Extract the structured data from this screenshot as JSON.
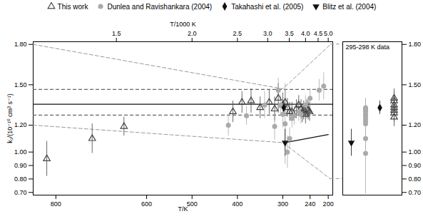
{
  "chart_data": [
    {
      "type": "scatter",
      "xlabel": "T/K",
      "x2label": "T/1000 K",
      "ylabel": "k₁/(10⁻¹⁰ cm³ s⁻¹)",
      "xlim": [
        850,
        190
      ],
      "xticks": [
        800,
        600,
        500,
        400,
        300,
        240,
        200
      ],
      "x2ticks": [
        {
          "value": 666.6666666666666,
          "label": "1.5"
        },
        {
          "value": 500,
          "label": "2.0"
        },
        {
          "value": 400,
          "label": "2.5"
        },
        {
          "value": 333.3333333333333,
          "label": "3.0"
        },
        {
          "value": 285.7142857142857,
          "label": "3.5"
        },
        {
          "value": 250,
          "label": "4.0"
        },
        {
          "value": 222.22222222222223,
          "label": "4.5"
        },
        {
          "value": 200,
          "label": "5.0"
        }
      ],
      "ylim": [
        0.68,
        1.82
      ],
      "yticks": [
        {
          "value": 0.7,
          "label": "0.70"
        },
        {
          "value": 0.8,
          "label": "0.80"
        },
        {
          "value": 0.9,
          "label": "0.90"
        },
        {
          "value": 1.0,
          "label": "1.00"
        },
        {
          "value": 1.2,
          "label": "1.20"
        },
        {
          "value": 1.5,
          "label": "1.50"
        },
        {
          "value": 1.8,
          "label": "1.80"
        }
      ],
      "legend": "top",
      "series": [
        {
          "name": "This work",
          "color": "#444444",
          "marker": "triangle-open",
          "x": [
            820,
            720,
            650,
            410,
            390,
            370,
            350,
            330,
            318,
            310,
            300,
            295,
            290,
            285,
            280,
            270,
            265,
            260,
            257,
            254,
            250,
            247,
            244,
            241
          ],
          "values": [
            0.95,
            1.1,
            1.19,
            1.3,
            1.37,
            1.38,
            1.33,
            1.37,
            1.32,
            1.4,
            1.35,
            1.37,
            1.33,
            1.3,
            1.3,
            1.32,
            1.35,
            1.32,
            1.29,
            1.31,
            1.28,
            1.32,
            1.31,
            1.3
          ],
          "yerr": [
            0.13,
            0.11,
            0.07,
            0.08,
            0.08,
            0.09,
            0.08,
            0.09,
            0.09,
            0.11,
            0.09,
            0.09,
            0.07,
            0.07,
            0.07,
            0.07,
            0.07,
            0.07,
            0.07,
            0.07,
            0.07,
            0.07,
            0.07,
            0.07
          ]
        },
        {
          "name": "Dunlea and Ravishankara (2004)",
          "color": "#aaaaaa",
          "marker": "circle",
          "x": [
            420,
            380,
            340,
            318,
            310,
            305,
            300,
            295,
            290,
            285,
            280,
            275,
            265,
            260,
            250,
            240,
            220,
            210
          ],
          "values": [
            1.2,
            1.27,
            1.35,
            1.19,
            1.46,
            1.35,
            1.28,
            1.21,
            1.0,
            1.1,
            1.25,
            1.27,
            1.3,
            1.28,
            1.35,
            1.4,
            1.46,
            1.49
          ],
          "yerr": [
            0.08,
            0.07,
            0.1,
            0.1,
            0.09,
            0.07,
            0.1,
            0.3,
            0.12,
            0.08,
            0.07,
            0.07,
            0.07,
            0.07,
            0.07,
            0.07,
            0.08,
            0.1
          ]
        },
        {
          "name": "Takahashi et al. (2005)",
          "color": "#111111",
          "marker": "diamond",
          "x": [
            298
          ],
          "values": [
            1.33
          ],
          "yerr": [
            0.05
          ]
        },
        {
          "name": "Blitz et al. (2004)",
          "color": "#111111",
          "marker": "triangle-down",
          "x": [
            295
          ],
          "values": [
            1.07
          ],
          "yerr": [
            0.1
          ]
        }
      ],
      "hlines": [
        {
          "y": 1.355,
          "color": "#111111",
          "line_style": "solid"
        },
        {
          "y": 1.465,
          "color": "#666666",
          "line_style": "dashed"
        },
        {
          "y": 1.275,
          "color": "#666666",
          "line_style": "dashed"
        }
      ],
      "lines": [
        {
          "x": [
            295,
            200
          ],
          "values": [
            1.07,
            1.13
          ],
          "color": "#111111",
          "line_style": "solid"
        }
      ],
      "zoom_lines": [
        {
          "x": [
            850,
            300,
            195
          ],
          "values": [
            1.8,
            1.47,
            1.8
          ],
          "color": "#999999",
          "line_style": "dashed"
        },
        {
          "x": [
            850,
            300,
            195
          ],
          "values": [
            1.2,
            1.07,
            0.8
          ],
          "color": "#999999",
          "line_style": "dashed"
        }
      ]
    },
    {
      "type": "scatter",
      "annotation": "295-298 K data",
      "ylim": [
        0.68,
        1.82
      ],
      "yticks": [
        {
          "value": 0.7,
          "label": "0.70"
        },
        {
          "value": 0.8,
          "label": "0.80"
        },
        {
          "value": 0.9,
          "label": "0.90"
        },
        {
          "value": 1.0,
          "label": "1.00"
        },
        {
          "value": 1.2,
          "label": "1.20"
        },
        {
          "value": 1.5,
          "label": "1.50"
        },
        {
          "value": 1.8,
          "label": "1.80"
        }
      ],
      "series": [
        {
          "name": "Blitz et al. (2004)",
          "color": "#111111",
          "marker": "triangle-down",
          "values": [
            1.07
          ],
          "yerr": [
            0.1
          ]
        },
        {
          "name": "Dunlea and Ravishankara (2004)",
          "color": "#aaaaaa",
          "marker": "circle",
          "values": [
            0.99,
            1.1,
            1.21,
            1.23,
            1.25,
            1.27,
            1.28,
            1.3,
            1.31,
            1.32,
            1.33
          ],
          "yerr": [
            0.3,
            0.08,
            0.07,
            0.07,
            0.07,
            0.07,
            0.07,
            0.07,
            0.07,
            0.07,
            0.07
          ]
        },
        {
          "name": "Takahashi et al. (2005)",
          "color": "#111111",
          "marker": "diamond",
          "values": [
            1.33
          ],
          "yerr": [
            0.05
          ]
        },
        {
          "name": "This work",
          "color": "#444444",
          "marker": "triangle-open",
          "values": [
            1.26,
            1.29,
            1.31,
            1.33,
            1.35,
            1.38,
            1.4
          ],
          "yerr": [
            0.07,
            0.07,
            0.07,
            0.07,
            0.07,
            0.07,
            0.07
          ]
        }
      ]
    }
  ]
}
